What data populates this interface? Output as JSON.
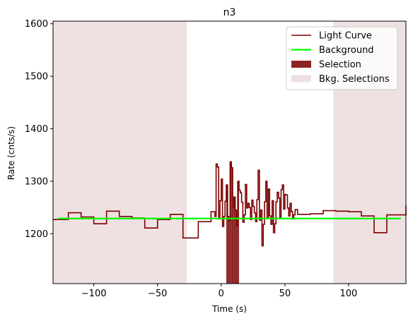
{
  "chart_data": {
    "type": "line",
    "title": "n3",
    "xlabel": "Time (s)",
    "ylabel": "Rate (cnts/s)",
    "xlim": [
      -132,
      145
    ],
    "ylim": [
      1105,
      1605
    ],
    "xticks": [
      -100,
      -50,
      0,
      50,
      100
    ],
    "yticks": [
      1200,
      1300,
      1400,
      1500,
      1600
    ],
    "xtick_labels": [
      "−100",
      "−50",
      "0",
      "50",
      "100"
    ],
    "ytick_labels": [
      "1200",
      "1300",
      "1400",
      "1500",
      "1600"
    ],
    "grid": false,
    "legend_position": "top-right",
    "colors": {
      "light_curve": "#7b0000",
      "background": "#00ff00",
      "selection": "#8b2323",
      "bkg_selection": "#efe1e1"
    },
    "legend": [
      {
        "label": "Light Curve",
        "kind": "line",
        "color": "#7b0000"
      },
      {
        "label": "Background",
        "kind": "line",
        "color": "#00ff00"
      },
      {
        "label": "Selection",
        "kind": "patch",
        "color": "#8b2323"
      },
      {
        "label": "Bkg. Selections",
        "kind": "patch",
        "color": "#efe1e1"
      }
    ],
    "series": [
      {
        "name": "Light Curve",
        "step_edges": [
          -132,
          -120,
          -110,
          -100,
          -90,
          -80,
          -70,
          -60,
          -50,
          -40,
          -30,
          -18,
          -8,
          -5,
          -4,
          -3,
          -2,
          -1,
          0,
          1,
          2,
          3,
          4,
          5,
          6,
          7,
          8,
          9,
          10,
          11,
          12,
          13,
          14,
          15,
          16,
          17,
          18,
          19,
          20,
          21,
          22,
          23,
          24,
          25,
          26,
          27,
          28,
          29,
          30,
          31,
          32,
          33,
          34,
          35,
          36,
          37,
          38,
          39,
          40,
          41,
          42,
          43,
          44,
          45,
          46,
          47,
          48,
          49,
          50,
          51,
          52,
          53,
          54,
          55,
          56,
          57,
          58,
          60,
          70,
          80,
          90,
          100,
          110,
          120,
          130,
          145
        ],
        "step_values": [
          1227,
          1240,
          1232,
          1219,
          1243,
          1233,
          1230,
          1211,
          1227,
          1237,
          1192,
          1223,
          1242,
          1233,
          1333,
          1327,
          1228,
          1263,
          1304,
          1214,
          1233,
          1262,
          1293,
          1233,
          1226,
          1337,
          1326,
          1252,
          1270,
          1245,
          1216,
          1300,
          1283,
          1278,
          1260,
          1222,
          1236,
          1294,
          1249,
          1258,
          1250,
          1227,
          1264,
          1252,
          1240,
          1223,
          1265,
          1321,
          1226,
          1245,
          1177,
          1218,
          1261,
          1300,
          1230,
          1285,
          1234,
          1218,
          1263,
          1202,
          1219,
          1261,
          1279,
          1268,
          1230,
          1284,
          1293,
          1247,
          1275,
          1274,
          1249,
          1234,
          1258,
          1242,
          1228,
          1236,
          1246,
          1237,
          1238,
          1244,
          1243,
          1242,
          1234,
          1202,
          1236,
          1254
        ]
      },
      {
        "name": "Background",
        "x": [
          -128,
          141
        ],
        "values": [
          1229,
          1229
        ]
      }
    ],
    "selection": {
      "x_start": 4,
      "x_end": 14
    },
    "bkg_selections": [
      [
        -132,
        -27
      ],
      [
        88,
        145
      ]
    ]
  }
}
